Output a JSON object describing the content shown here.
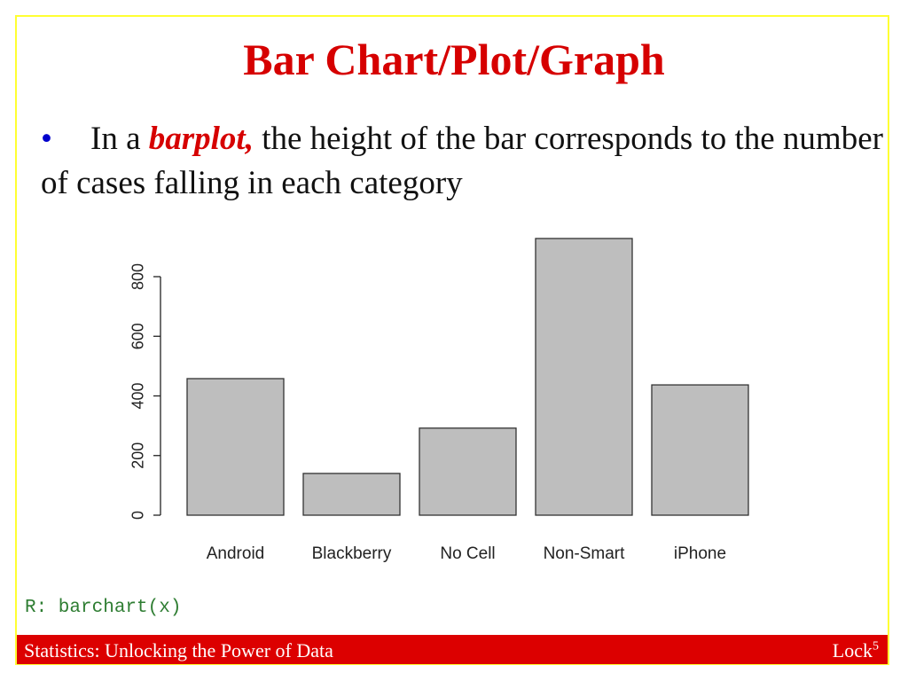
{
  "slide": {
    "title": "Bar Chart/Plot/Graph",
    "bullet_pre": "In a ",
    "bullet_em": "barplot,",
    "bullet_post": " the height of the bar corresponds to the number of cases falling in each category",
    "code": "R: barchart(x)",
    "footer_left": "Statistics: Unlocking the Power of Data",
    "footer_right": "Lock",
    "footer_sup": "5"
  },
  "colors": {
    "accent": "#dc0000",
    "bullet": "#0000cc",
    "bar_fill": "#bebebe",
    "frame": "#ffff33"
  },
  "chart_data": {
    "type": "bar",
    "categories": [
      "Android",
      "Blackberry",
      "No Cell",
      "Non-Smart",
      "iPhone"
    ],
    "values": [
      458,
      140,
      292,
      928,
      437
    ],
    "yticks": [
      "0",
      "200",
      "400",
      "600",
      "800"
    ],
    "ylim": [
      0,
      928
    ],
    "grid": false
  }
}
